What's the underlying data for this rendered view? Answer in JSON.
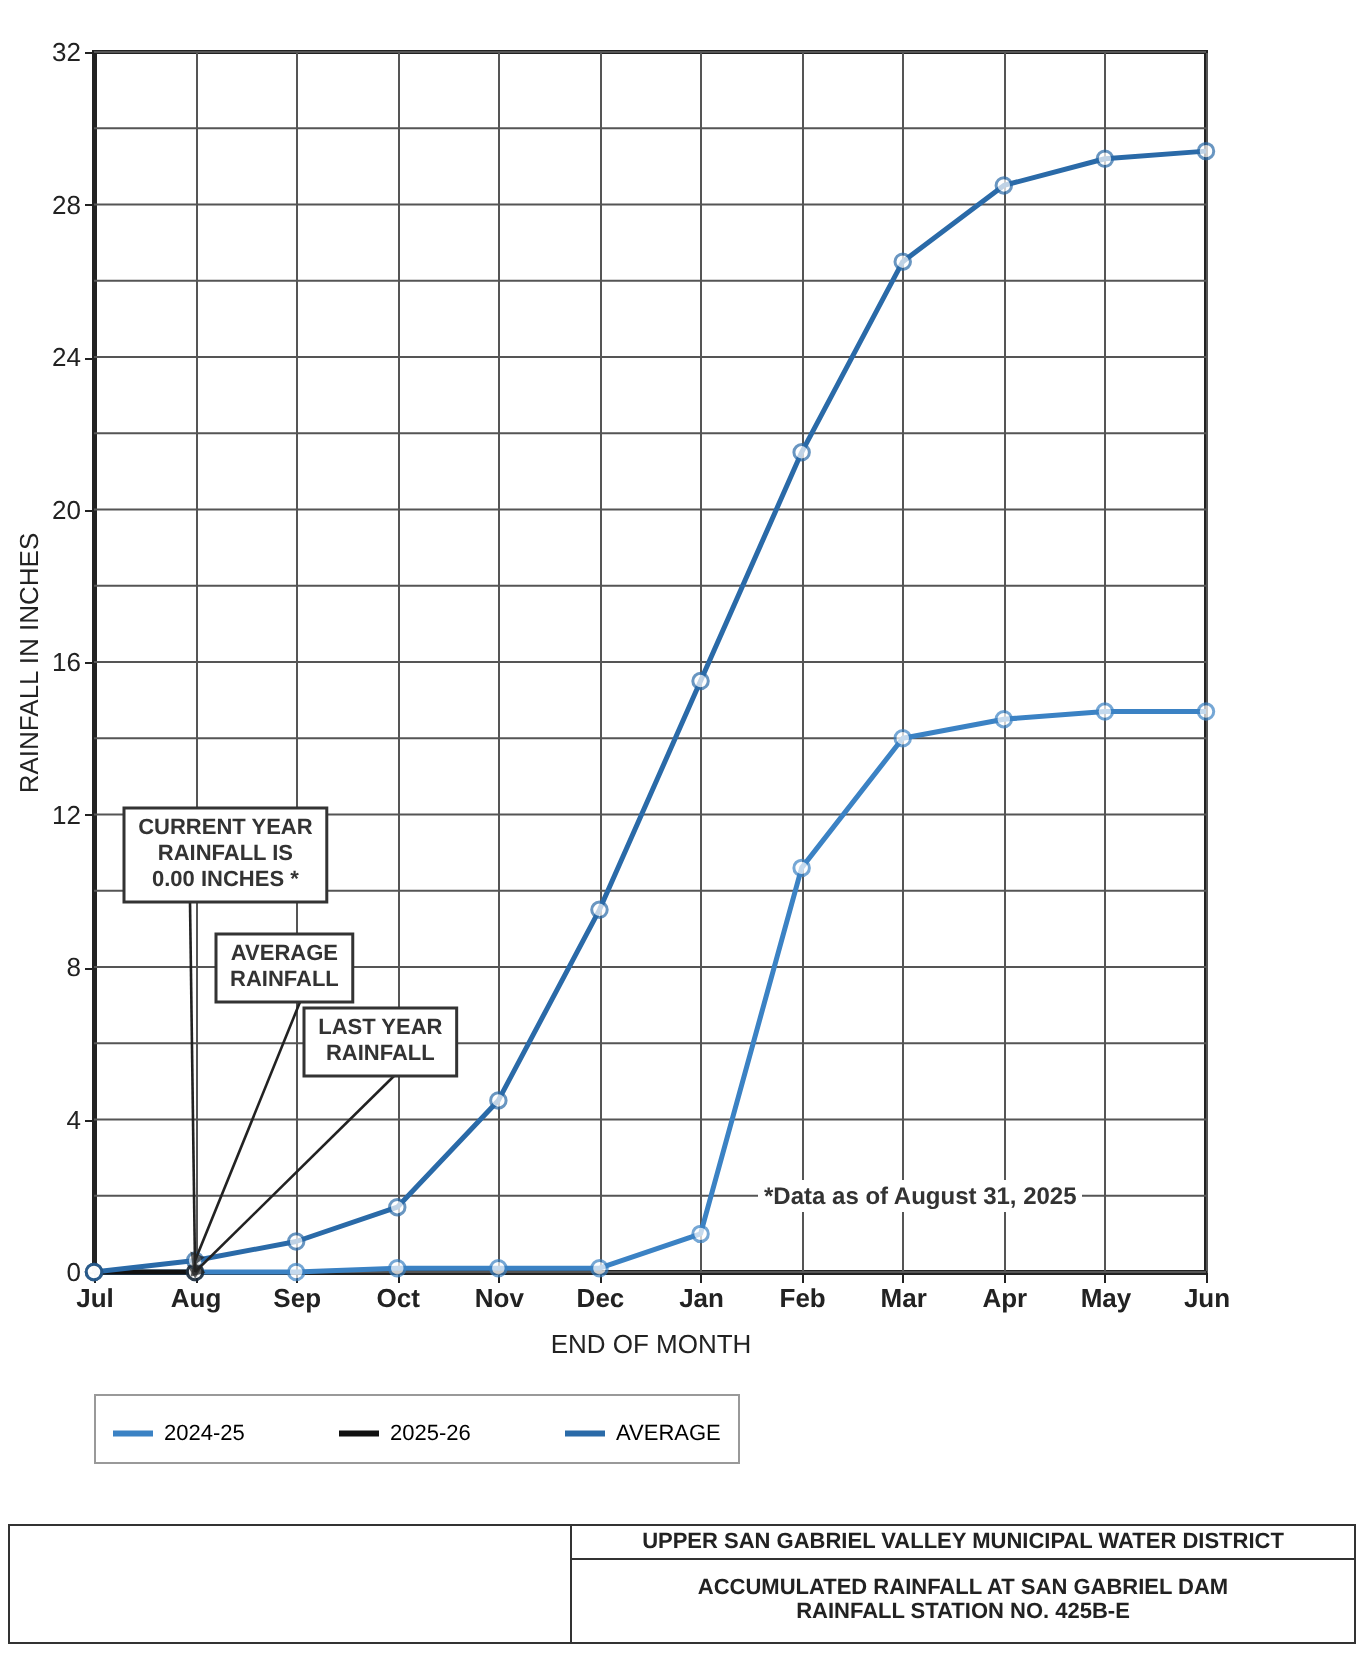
{
  "chart_data": {
    "type": "line",
    "xlabel": "END OF MONTH",
    "ylabel": "RAINFALL IN INCHES",
    "categories": [
      "Jul",
      "Aug",
      "Sep",
      "Oct",
      "Nov",
      "Dec",
      "Jan",
      "Feb",
      "Mar",
      "Apr",
      "May",
      "Jun"
    ],
    "series": [
      {
        "name": "2024-25",
        "color": "#3b82c4",
        "values": [
          0,
          0,
          0,
          0.1,
          0.1,
          0.1,
          1.0,
          10.6,
          14.0,
          14.5,
          14.7,
          14.7
        ]
      },
      {
        "name": "2025-26",
        "color": "#111111",
        "values": [
          0,
          0,
          null,
          null,
          null,
          null,
          null,
          null,
          null,
          null,
          null,
          null
        ]
      },
      {
        "name": "AVERAGE",
        "color": "#2a6aa8",
        "values": [
          0,
          0.3,
          0.8,
          1.7,
          4.5,
          9.5,
          15.5,
          21.5,
          26.5,
          28.5,
          29.2,
          29.4
        ]
      }
    ],
    "ylim": [
      0,
      32
    ],
    "yticks": [
      0,
      {
        "value": 2,
        "label": null
      },
      4,
      {
        "value": 6,
        "label": null
      },
      8,
      {
        "value": 10,
        "label": null
      },
      12,
      {
        "value": 14,
        "label": null
      },
      16,
      {
        "value": 18,
        "label": null
      },
      20,
      {
        "value": 22,
        "label": null
      },
      24,
      {
        "value": 26,
        "label": null
      },
      28,
      {
        "value": 30,
        "label": null
      },
      32
    ],
    "grid": true,
    "legend": "bottom",
    "marker": "circle",
    "line_style": "solid",
    "annotations": [
      {
        "text": "CURRENT YEAR\nRAINFALL IS\n0.00 INCHES *",
        "x": "Aug",
        "y": 0
      },
      {
        "text": "AVERAGE\nRAINFALL",
        "x": "Aug",
        "y": 0.3
      },
      {
        "text": "LAST YEAR\nRAINFALL",
        "x": "Aug",
        "y": 0
      },
      "*Data as of August 31, 2025",
      "UPPER SAN GABRIEL VALLEY MUNICIPAL WATER DISTRICT",
      "ACCUMULATED RAINFALL AT SAN GABRIEL DAM\nRAINFALL STATION NO. 425B-E"
    ]
  }
}
